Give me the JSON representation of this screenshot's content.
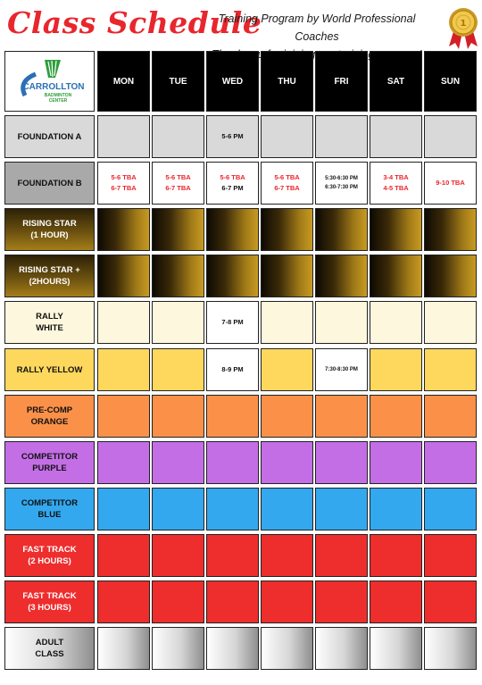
{
  "header": {
    "title": "Class Schedule",
    "subtitle_line1": "Training Program by World Professional Coaches",
    "subtitle_line2": "Thank you for joining our training program!"
  },
  "logo": {
    "line1": "CARROLLTON",
    "line2": "BADMINTON",
    "line3": "CENTER"
  },
  "days": [
    "MON",
    "TUE",
    "WED",
    "THU",
    "FRI",
    "SAT",
    "SUN"
  ],
  "rows": [
    {
      "label_lines": [
        "FOUNDATION A"
      ],
      "label_bg": "#d9d9d9",
      "cell_bg": "#d9d9d9",
      "label_text": "#111111",
      "slots": {
        "2": {
          "lines": [
            "5-6 PM"
          ],
          "color": "black"
        }
      }
    },
    {
      "label_lines": [
        "FOUNDATION B"
      ],
      "label_bg": "#a9a9a9",
      "cell_bg": "#ffffff",
      "label_text": "#111111",
      "slots": {
        "0": {
          "lines": [
            "5-6 TBA",
            "6-7 TBA"
          ],
          "color": "red"
        },
        "1": {
          "lines": [
            "5-6 TBA",
            "6-7 TBA"
          ],
          "color": "red"
        },
        "2": {
          "lines": [
            "5-6 TBA",
            "6-7 PM"
          ],
          "color": "mixed"
        },
        "3": {
          "lines": [
            "5-6 TBA",
            "6-7 TBA"
          ],
          "color": "red"
        },
        "4": {
          "lines": [
            "5:30-6:30 PM",
            "6:30-7:30 PM"
          ],
          "color": "black",
          "small": true
        },
        "5": {
          "lines": [
            "3-4 TBA",
            "4-5 TBA"
          ],
          "color": "red"
        },
        "6": {
          "lines": [
            "9-10 TBA"
          ],
          "color": "red"
        }
      }
    },
    {
      "label_lines": [
        "RISING STAR",
        "(1 HOUR)"
      ],
      "label_bg": "gold-dark",
      "cell_bg": "gold-grad",
      "label_text": "#ffffff",
      "slots": {}
    },
    {
      "label_lines": [
        "RISING STAR +",
        "(2HOURS)"
      ],
      "label_bg": "gold-dark",
      "cell_bg": "gold-grad",
      "label_text": "#ffffff",
      "slots": {}
    },
    {
      "label_lines": [
        "RALLY",
        "WHITE"
      ],
      "label_bg": "#fdf7dd",
      "cell_bg": "#fdf7dd",
      "label_text": "#111111",
      "slots": {
        "2": {
          "lines": [
            "7-8 PM"
          ],
          "color": "black",
          "bg": "#ffffff"
        }
      }
    },
    {
      "label_lines": [
        "RALLY YELLOW"
      ],
      "label_bg": "#fdd85d",
      "cell_bg": "#fdd85d",
      "label_text": "#111111",
      "slots": {
        "2": {
          "lines": [
            "8-9 PM"
          ],
          "color": "black",
          "bg": "#ffffff"
        },
        "4": {
          "lines": [
            "7:30-8:30 PM"
          ],
          "color": "black",
          "bg": "#ffffff",
          "small": true
        }
      }
    },
    {
      "label_lines": [
        "PRE-COMP",
        "ORANGE"
      ],
      "label_bg": "#fb9148",
      "cell_bg": "#fb9148",
      "label_text": "#111111",
      "slots": {}
    },
    {
      "label_lines": [
        "COMPETITOR",
        "PURPLE"
      ],
      "label_bg": "#c46ee6",
      "cell_bg": "#c46ee6",
      "label_text": "#111111",
      "slots": {}
    },
    {
      "label_lines": [
        "COMPETITOR",
        "BLUE"
      ],
      "label_bg": "#33a8ef",
      "cell_bg": "#33a8ef",
      "label_text": "#111111",
      "slots": {}
    },
    {
      "label_lines": [
        "FAST TRACK",
        "(2 HOURS)"
      ],
      "label_bg": "#ee2d2d",
      "cell_bg": "#ee2d2d",
      "label_text": "#ffffff",
      "slots": {}
    },
    {
      "label_lines": [
        "FAST TRACK",
        "(3 HOURS)"
      ],
      "label_bg": "#ee2d2d",
      "cell_bg": "#ee2d2d",
      "label_text": "#ffffff",
      "slots": {}
    },
    {
      "label_lines": [
        "ADULT",
        "CLASS"
      ],
      "label_bg": "silver-grad",
      "cell_bg": "silver-grad",
      "label_text": "#111111",
      "slots": {}
    }
  ]
}
